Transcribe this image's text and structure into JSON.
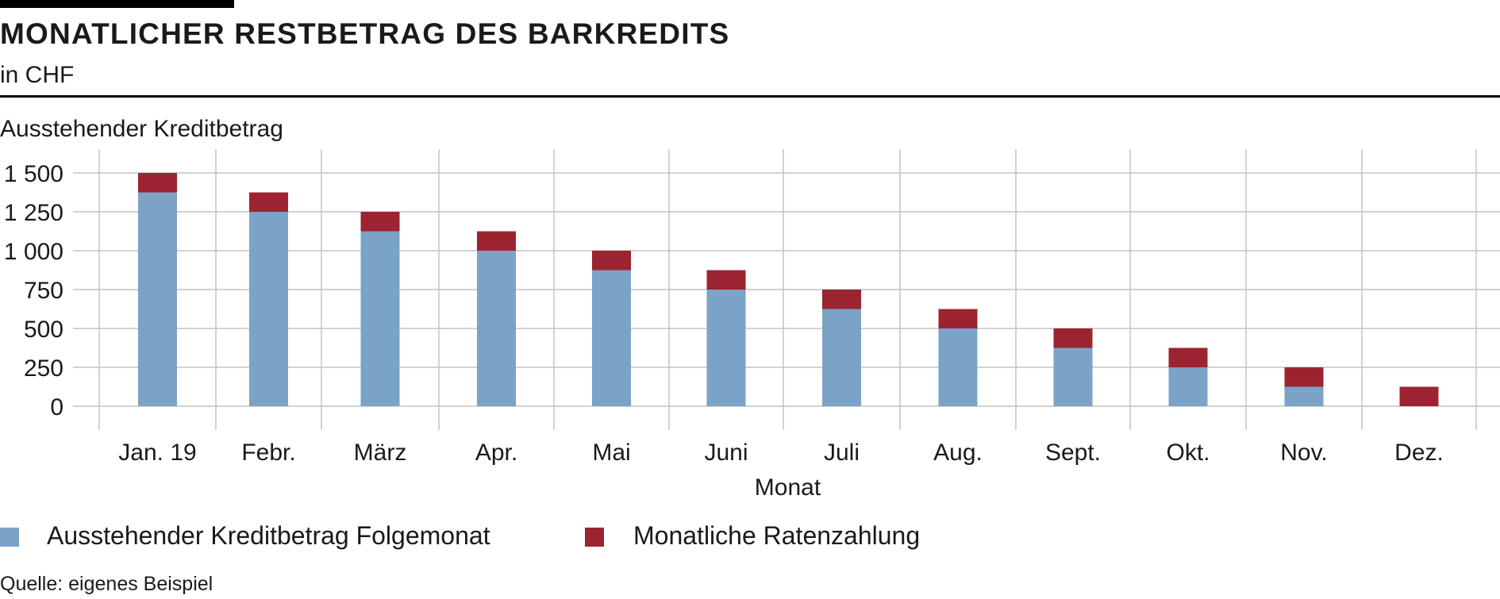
{
  "header": {
    "title": "MONATLICHER RESTBETRAG DES BARKREDITS",
    "subtitle": "in CHF"
  },
  "footer": {
    "source": "Quelle: eigenes Beispiel"
  },
  "colors": {
    "series_remaining": "#7ba3c7",
    "series_payment": "#9b2430",
    "grid": "#c4c4c4",
    "rule": "#000000"
  },
  "chart_data": {
    "type": "bar",
    "stacked": true,
    "title": "MONATLICHER RESTBETRAG DES BARKREDITS",
    "subtitle": "in CHF",
    "xlabel": "Monat",
    "ylabel": "Ausstehender Kreditbetrag",
    "ylim": [
      0,
      1500
    ],
    "yticks": [
      0,
      250,
      500,
      750,
      1000,
      1250,
      1500
    ],
    "ytick_labels": [
      "0",
      "250",
      "500",
      "750",
      "1 000",
      "1 250",
      "1 500"
    ],
    "categories": [
      "Jan. 19",
      "Febr.",
      "März",
      "Apr.",
      "Mai",
      "Juni",
      "Juli",
      "Aug.",
      "Sept.",
      "Okt.",
      "Nov.",
      "Dez."
    ],
    "series": [
      {
        "name": "Ausstehender Kreditbetrag Folgemonat",
        "color": "#7ba3c7",
        "values": [
          1375,
          1250,
          1125,
          1000,
          875,
          750,
          625,
          500,
          375,
          250,
          125,
          0
        ]
      },
      {
        "name": "Monatliche Ratenzahlung",
        "color": "#9b2430",
        "values": [
          125,
          125,
          125,
          125,
          125,
          125,
          125,
          125,
          125,
          125,
          125,
          125
        ]
      }
    ],
    "grid": true,
    "legend": "bottom-left"
  }
}
